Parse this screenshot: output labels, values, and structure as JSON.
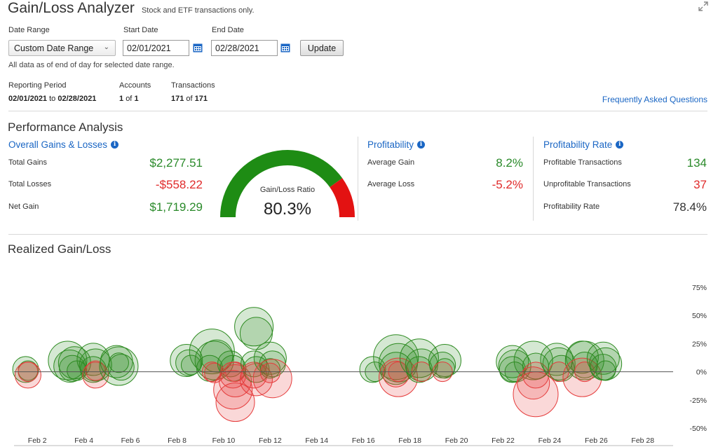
{
  "header": {
    "title": "Gain/Loss Analyzer",
    "subtitle": "Stock and ETF transactions only."
  },
  "controls": {
    "date_range_label": "Date Range",
    "date_range_value": "Custom Date Range",
    "start_date_label": "Start Date",
    "start_date_value": "02/01/2021",
    "end_date_label": "End Date",
    "end_date_value": "02/28/2021",
    "update_label": "Update",
    "as_of_note": "All data as of end of day for selected date range."
  },
  "info": {
    "reporting_period_label": "Reporting Period",
    "period_start": "02/01/2021",
    "period_to": "to",
    "period_end": "02/28/2021",
    "accounts_label": "Accounts",
    "accounts_shown": "1",
    "of_word": "of",
    "accounts_total": "1",
    "transactions_label": "Transactions",
    "transactions_shown": "171",
    "transactions_total": "171",
    "faq_link": "Frequently Asked Questions"
  },
  "performance": {
    "title": "Performance Analysis",
    "overall": {
      "title": "Overall Gains & Losses",
      "total_gains_label": "Total Gains",
      "total_gains": "$2,277.51",
      "total_losses_label": "Total Losses",
      "total_losses": "-$558.22",
      "net_gain_label": "Net Gain",
      "net_gain": "$1,719.29"
    },
    "gauge": {
      "label": "Gain/Loss Ratio",
      "value_text": "80.3%",
      "ratio": 0.803,
      "gain_color": "#1e8c14",
      "loss_color": "#e31212"
    },
    "profitability": {
      "title": "Profitability",
      "avg_gain_label": "Average Gain",
      "avg_gain": "8.2%",
      "avg_loss_label": "Average Loss",
      "avg_loss": "-5.2%"
    },
    "profitability_rate": {
      "title": "Profitability Rate",
      "profitable_label": "Profitable Transactions",
      "profitable": "134",
      "unprofitable_label": "Unprofitable Transactions",
      "unprofitable": "37",
      "rate_label": "Profitability Rate",
      "rate": "78.4%"
    }
  },
  "realized": {
    "title": "Realized Gain/Loss"
  },
  "colors": {
    "gain": "#2e8b22",
    "loss": "#e53b3b",
    "link": "#1a66c4"
  },
  "chart_data": {
    "type": "scatter",
    "title": "",
    "xlabel": "",
    "ylabel": "",
    "x_ticks": [
      "Feb 2",
      "Feb 4",
      "Feb 6",
      "Feb 8",
      "Feb 10",
      "Feb 12",
      "Feb 14",
      "Feb 16",
      "Feb 18",
      "Feb 20",
      "Feb 22",
      "Feb 24",
      "Feb 26",
      "Feb 28"
    ],
    "x_tick_days": [
      2,
      4,
      6,
      8,
      10,
      12,
      14,
      16,
      18,
      20,
      22,
      24,
      26,
      28
    ],
    "xlim": [
      1,
      29
    ],
    "y_ticks": [
      "75%",
      "50%",
      "25%",
      "0%",
      "-25%",
      "-50%"
    ],
    "y_tick_values": [
      75,
      50,
      25,
      0,
      -25,
      -50
    ],
    "ylim": [
      -50,
      75
    ],
    "zero_line": true,
    "grid": false,
    "size_encoding": "bubble radius",
    "points": [
      {
        "day": 1.5,
        "pct": 2,
        "size": 3,
        "kind": "gain"
      },
      {
        "day": 1.6,
        "pct": 1,
        "size": 2,
        "kind": "gain"
      },
      {
        "day": 1.6,
        "pct": -3,
        "size": 3,
        "kind": "loss"
      },
      {
        "day": 1.6,
        "pct": 0,
        "size": 2,
        "kind": "loss"
      },
      {
        "day": 3.3,
        "pct": 10,
        "size": 5,
        "kind": "gain"
      },
      {
        "day": 3.4,
        "pct": 5,
        "size": 4,
        "kind": "gain"
      },
      {
        "day": 3.5,
        "pct": 3,
        "size": 3,
        "kind": "gain"
      },
      {
        "day": 3.6,
        "pct": 8,
        "size": 4,
        "kind": "gain"
      },
      {
        "day": 3.7,
        "pct": 1,
        "size": 2,
        "kind": "gain"
      },
      {
        "day": 4.4,
        "pct": 11,
        "size": 4,
        "kind": "gain"
      },
      {
        "day": 4.5,
        "pct": 6,
        "size": 4,
        "kind": "gain"
      },
      {
        "day": 4.4,
        "pct": 2,
        "size": 3,
        "kind": "gain"
      },
      {
        "day": 4.5,
        "pct": -3,
        "size": 3,
        "kind": "loss"
      },
      {
        "day": 4.5,
        "pct": 1,
        "size": 2,
        "kind": "loss"
      },
      {
        "day": 5.4,
        "pct": 9,
        "size": 4,
        "kind": "gain"
      },
      {
        "day": 5.5,
        "pct": 5,
        "size": 5,
        "kind": "gain"
      },
      {
        "day": 5.6,
        "pct": 4,
        "size": 3,
        "kind": "gain"
      },
      {
        "day": 5.5,
        "pct": 8,
        "size": 2,
        "kind": "gain"
      },
      {
        "day": 8.4,
        "pct": 10,
        "size": 4,
        "kind": "gain"
      },
      {
        "day": 8.5,
        "pct": 8,
        "size": 3,
        "kind": "gain"
      },
      {
        "day": 8.6,
        "pct": 6,
        "size": 2,
        "kind": "gain"
      },
      {
        "day": 9.5,
        "pct": 18,
        "size": 6,
        "kind": "gain"
      },
      {
        "day": 9.6,
        "pct": 10,
        "size": 5,
        "kind": "gain"
      },
      {
        "day": 9.7,
        "pct": 14,
        "size": 4,
        "kind": "gain"
      },
      {
        "day": 9.4,
        "pct": 3,
        "size": 3,
        "kind": "gain"
      },
      {
        "day": 9.5,
        "pct": 0,
        "size": 2,
        "kind": "loss"
      },
      {
        "day": 9.6,
        "pct": -1,
        "size": 2,
        "kind": "loss"
      },
      {
        "day": 10.3,
        "pct": 7,
        "size": 3,
        "kind": "gain"
      },
      {
        "day": 10.4,
        "pct": 3,
        "size": 3,
        "kind": "gain"
      },
      {
        "day": 10.5,
        "pct": -27,
        "size": 5,
        "kind": "loss"
      },
      {
        "day": 10.4,
        "pct": -16,
        "size": 5,
        "kind": "loss"
      },
      {
        "day": 10.5,
        "pct": -8,
        "size": 4,
        "kind": "loss"
      },
      {
        "day": 10.4,
        "pct": -3,
        "size": 3,
        "kind": "loss"
      },
      {
        "day": 10.5,
        "pct": 0,
        "size": 2,
        "kind": "loss"
      },
      {
        "day": 11.3,
        "pct": 40,
        "size": 5,
        "kind": "gain"
      },
      {
        "day": 11.4,
        "pct": 34,
        "size": 4,
        "kind": "gain"
      },
      {
        "day": 11.3,
        "pct": 7,
        "size": 3,
        "kind": "gain"
      },
      {
        "day": 11.4,
        "pct": 2,
        "size": 3,
        "kind": "gain"
      },
      {
        "day": 11.4,
        "pct": -7,
        "size": 4,
        "kind": "loss"
      },
      {
        "day": 11.3,
        "pct": -3,
        "size": 3,
        "kind": "loss"
      },
      {
        "day": 12.0,
        "pct": 12,
        "size": 4,
        "kind": "gain"
      },
      {
        "day": 12.1,
        "pct": 7,
        "size": 3,
        "kind": "gain"
      },
      {
        "day": 12.0,
        "pct": 3,
        "size": 2,
        "kind": "gain"
      },
      {
        "day": 12.1,
        "pct": -6,
        "size": 5,
        "kind": "loss"
      },
      {
        "day": 12.0,
        "pct": -1,
        "size": 2,
        "kind": "loss"
      },
      {
        "day": 16.4,
        "pct": 2,
        "size": 3,
        "kind": "gain"
      },
      {
        "day": 16.5,
        "pct": 0,
        "size": 2,
        "kind": "gain"
      },
      {
        "day": 17.4,
        "pct": 13,
        "size": 6,
        "kind": "gain"
      },
      {
        "day": 17.5,
        "pct": 8,
        "size": 5,
        "kind": "gain"
      },
      {
        "day": 17.4,
        "pct": 3,
        "size": 4,
        "kind": "gain"
      },
      {
        "day": 17.5,
        "pct": -5,
        "size": 5,
        "kind": "loss"
      },
      {
        "day": 17.4,
        "pct": -2,
        "size": 3,
        "kind": "loss"
      },
      {
        "day": 17.5,
        "pct": 0,
        "size": 2,
        "kind": "loss"
      },
      {
        "day": 18.4,
        "pct": 12,
        "size": 5,
        "kind": "gain"
      },
      {
        "day": 18.5,
        "pct": 6,
        "size": 4,
        "kind": "gain"
      },
      {
        "day": 18.4,
        "pct": 2,
        "size": 3,
        "kind": "gain"
      },
      {
        "day": 18.5,
        "pct": 0,
        "size": 2,
        "kind": "loss"
      },
      {
        "day": 19.5,
        "pct": 10,
        "size": 4,
        "kind": "gain"
      },
      {
        "day": 19.4,
        "pct": 6,
        "size": 3,
        "kind": "gain"
      },
      {
        "day": 19.5,
        "pct": 3,
        "size": 2,
        "kind": "gain"
      },
      {
        "day": 19.4,
        "pct": 0,
        "size": 2,
        "kind": "loss"
      },
      {
        "day": 22.4,
        "pct": 9,
        "size": 4,
        "kind": "gain"
      },
      {
        "day": 22.5,
        "pct": 5,
        "size": 4,
        "kind": "gain"
      },
      {
        "day": 22.4,
        "pct": 2,
        "size": 3,
        "kind": "gain"
      },
      {
        "day": 22.5,
        "pct": 0,
        "size": 2,
        "kind": "gain"
      },
      {
        "day": 23.3,
        "pct": 10,
        "size": 5,
        "kind": "gain"
      },
      {
        "day": 23.4,
        "pct": 5,
        "size": 3,
        "kind": "gain"
      },
      {
        "day": 23.4,
        "pct": -20,
        "size": 6,
        "kind": "loss"
      },
      {
        "day": 23.3,
        "pct": -10,
        "size": 4,
        "kind": "loss"
      },
      {
        "day": 23.4,
        "pct": -3,
        "size": 3,
        "kind": "loss"
      },
      {
        "day": 24.3,
        "pct": 11,
        "size": 4,
        "kind": "gain"
      },
      {
        "day": 24.4,
        "pct": 7,
        "size": 4,
        "kind": "gain"
      },
      {
        "day": 24.5,
        "pct": 3,
        "size": 3,
        "kind": "gain"
      },
      {
        "day": 24.4,
        "pct": 0,
        "size": 2,
        "kind": "loss"
      },
      {
        "day": 25.5,
        "pct": 10,
        "size": 5,
        "kind": "gain"
      },
      {
        "day": 25.4,
        "pct": 13,
        "size": 4,
        "kind": "gain"
      },
      {
        "day": 25.5,
        "pct": 6,
        "size": 3,
        "kind": "gain"
      },
      {
        "day": 25.4,
        "pct": -5,
        "size": 5,
        "kind": "loss"
      },
      {
        "day": 25.5,
        "pct": 0,
        "size": 2,
        "kind": "loss"
      },
      {
        "day": 26.3,
        "pct": 12,
        "size": 4,
        "kind": "gain"
      },
      {
        "day": 26.4,
        "pct": 7,
        "size": 4,
        "kind": "gain"
      },
      {
        "day": 26.3,
        "pct": 4,
        "size": 3,
        "kind": "gain"
      },
      {
        "day": 26.4,
        "pct": 1,
        "size": 2,
        "kind": "gain"
      }
    ]
  }
}
